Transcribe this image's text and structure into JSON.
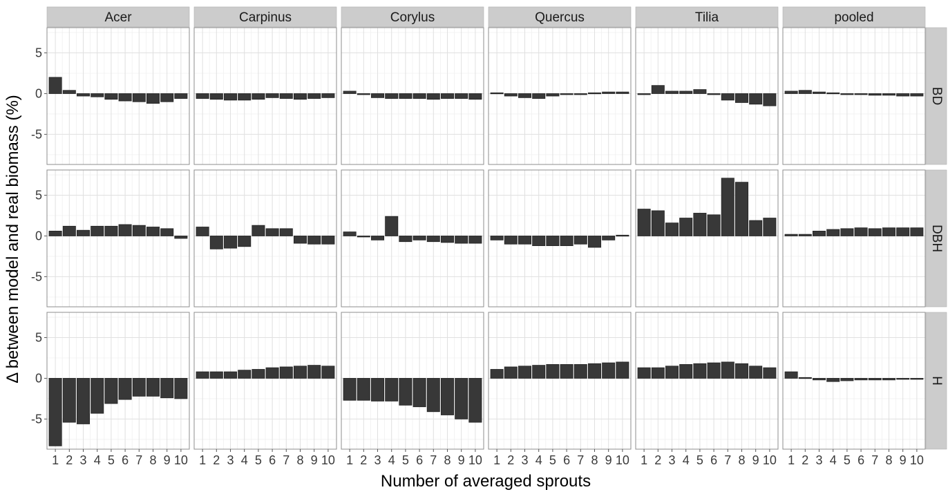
{
  "chart_data": {
    "type": "bar",
    "facet_columns": [
      "Acer",
      "Carpinus",
      "Corylus",
      "Quercus",
      "Tilia",
      "pooled"
    ],
    "facet_rows": [
      "BD",
      "DBH",
      "H"
    ],
    "categories": [
      "1",
      "2",
      "3",
      "4",
      "5",
      "6",
      "7",
      "8",
      "9",
      "10"
    ],
    "xlabel": "Number of averaged sprouts",
    "ylabel": "Δ between model and real biomass (%)",
    "ylim": [
      -8.7,
      8.1
    ],
    "yticks": [
      -5,
      0,
      5
    ],
    "grid": true,
    "bar_color": "#383838",
    "panel_strip_color": "#cccccc",
    "panels": {
      "BD": {
        "Acer": [
          2.0,
          0.4,
          -0.3,
          -0.4,
          -0.7,
          -0.9,
          -1.0,
          -1.2,
          -1.0,
          -0.6
        ],
        "Carpinus": [
          -0.6,
          -0.7,
          -0.8,
          -0.8,
          -0.7,
          -0.5,
          -0.6,
          -0.7,
          -0.6,
          -0.5
        ],
        "Corylus": [
          0.3,
          0.0,
          -0.5,
          -0.6,
          -0.6,
          -0.6,
          -0.7,
          -0.6,
          -0.6,
          -0.7
        ],
        "Quercus": [
          0.1,
          -0.3,
          -0.5,
          -0.6,
          -0.3,
          -0.1,
          0.0,
          0.1,
          0.2,
          0.2
        ],
        "Tilia": [
          -0.1,
          1.0,
          0.3,
          0.3,
          0.5,
          0.0,
          -0.8,
          -1.1,
          -1.3,
          -1.5
        ],
        "pooled": [
          0.3,
          0.4,
          0.2,
          0.1,
          0.0,
          -0.1,
          -0.2,
          -0.2,
          -0.3,
          -0.3
        ]
      },
      "DBH": {
        "Acer": [
          0.6,
          1.2,
          0.7,
          1.2,
          1.2,
          1.4,
          1.3,
          1.1,
          0.9,
          -0.3
        ],
        "Carpinus": [
          1.1,
          -1.6,
          -1.5,
          -1.3,
          1.3,
          0.9,
          0.9,
          -0.9,
          -1.0,
          -1.0
        ],
        "Corylus": [
          0.5,
          0.0,
          -0.5,
          2.4,
          -0.7,
          -0.5,
          -0.7,
          -0.8,
          -0.9,
          -0.9
        ],
        "Quercus": [
          -0.5,
          -1.0,
          -1.0,
          -1.2,
          -1.2,
          -1.2,
          -1.0,
          -1.4,
          -0.5,
          0.1
        ],
        "Tilia": [
          3.3,
          3.1,
          1.6,
          2.2,
          2.8,
          2.6,
          7.1,
          6.6,
          1.9,
          2.2
        ],
        "pooled": [
          0.2,
          0.2,
          0.6,
          0.8,
          0.9,
          1.0,
          0.9,
          1.0,
          1.0,
          1.0
        ]
      },
      "H": {
        "Acer": [
          -8.3,
          -5.4,
          -5.6,
          -4.3,
          -3.1,
          -2.6,
          -2.2,
          -2.2,
          -2.4,
          -2.5
        ],
        "Carpinus": [
          0.8,
          0.8,
          0.8,
          1.0,
          1.1,
          1.3,
          1.4,
          1.5,
          1.6,
          1.5
        ],
        "Corylus": [
          -2.7,
          -2.7,
          -2.8,
          -2.8,
          -3.3,
          -3.5,
          -4.1,
          -4.5,
          -5.0,
          -5.4
        ],
        "Quercus": [
          1.1,
          1.4,
          1.5,
          1.6,
          1.7,
          1.7,
          1.7,
          1.8,
          1.9,
          2.0
        ],
        "Tilia": [
          1.3,
          1.3,
          1.5,
          1.7,
          1.8,
          1.9,
          2.0,
          1.8,
          1.5,
          1.3
        ],
        "pooled": [
          0.8,
          0.1,
          -0.2,
          -0.4,
          -0.3,
          -0.2,
          -0.2,
          -0.2,
          -0.1,
          -0.1
        ]
      }
    }
  }
}
